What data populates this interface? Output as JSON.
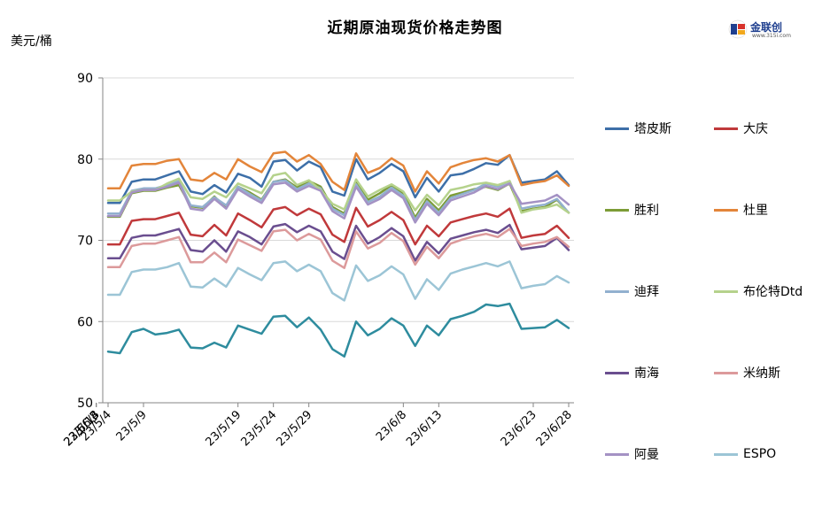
{
  "page": {
    "title": "近期原油现货价格走势图",
    "unit_label": "美元/桶"
  },
  "logo": {
    "brand": "金联创",
    "url": "www.315i.com"
  },
  "chart_data": {
    "type": "line",
    "title": "近期原油现货价格走势图",
    "ylabel": "美元/桶",
    "ylim": [
      50,
      90
    ],
    "yticks": [
      50,
      60,
      70,
      80,
      90
    ],
    "grid": "horizontal",
    "legend_position": "right",
    "x": [
      "23/5/4",
      "23/5/5",
      "23/5/8",
      "23/5/9",
      "23/5/10",
      "23/5/11",
      "23/5/12",
      "23/5/15",
      "23/5/16",
      "23/5/17",
      "23/5/18",
      "23/5/19",
      "23/5/22",
      "23/5/23",
      "23/5/24",
      "23/5/25",
      "23/5/26",
      "23/5/29",
      "23/5/30",
      "23/5/31",
      "23/6/1",
      "23/6/2",
      "23/6/5",
      "23/6/6",
      "23/6/7",
      "23/6/8",
      "23/6/9",
      "23/6/12",
      "23/6/13",
      "23/6/14",
      "23/6/15",
      "23/6/16",
      "23/6/19",
      "23/6/20",
      "23/6/21",
      "23/6/22",
      "23/6/23",
      "23/6/26",
      "23/6/27",
      "23/6/28"
    ],
    "xtick_labels": [
      "23/5/4",
      "23/5/9",
      "23/5/14",
      "23/5/19",
      "23/5/24",
      "23/5/29",
      "23/6/3",
      "23/6/8",
      "23/6/13",
      "23/6/18",
      "23/6/23",
      "23/6/28"
    ],
    "series": [
      {
        "name": "塔皮斯",
        "color": "#3d6fa8",
        "values": [
          74.6,
          74.6,
          77.2,
          77.5,
          77.5,
          78.0,
          78.5,
          76.0,
          75.7,
          76.8,
          75.9,
          78.2,
          77.7,
          76.6,
          79.7,
          79.9,
          78.6,
          79.7,
          79.0,
          76.0,
          75.5,
          80.0,
          77.5,
          78.3,
          79.4,
          78.5,
          75.3,
          77.7,
          76.0,
          78.0,
          78.2,
          78.8,
          79.5,
          79.3,
          80.5,
          77.1,
          77.3,
          77.5,
          78.5,
          76.8
        ]
      },
      {
        "name": "大庆",
        "color": "#c0393b",
        "values": [
          69.5,
          69.5,
          72.4,
          72.6,
          72.6,
          73.0,
          73.4,
          70.7,
          70.5,
          71.9,
          70.6,
          73.3,
          72.5,
          71.6,
          73.8,
          74.1,
          73.1,
          73.9,
          73.2,
          70.7,
          69.8,
          74.0,
          71.7,
          72.5,
          73.5,
          72.5,
          69.5,
          71.8,
          70.5,
          72.2,
          72.6,
          73.0,
          73.3,
          72.9,
          73.9,
          70.3,
          70.6,
          70.8,
          71.8,
          70.3
        ]
      },
      {
        "name": "胜利",
        "color": "#7c9c36",
        "values": [
          72.9,
          72.9,
          75.8,
          76.1,
          76.1,
          76.5,
          76.8,
          74.2,
          74.0,
          75.4,
          74.0,
          76.6,
          75.9,
          75.0,
          77.2,
          77.5,
          76.5,
          77.3,
          76.6,
          74.1,
          73.3,
          77.2,
          75.0,
          75.8,
          76.8,
          75.8,
          72.8,
          75.1,
          73.7,
          75.5,
          75.9,
          76.3,
          76.6,
          76.2,
          77.0,
          73.6,
          73.9,
          74.1,
          75.0,
          73.4
        ]
      },
      {
        "name": "杜里",
        "color": "#e3853a",
        "values": [
          76.4,
          76.4,
          79.2,
          79.4,
          79.4,
          79.8,
          80.0,
          77.5,
          77.3,
          78.3,
          77.5,
          80.0,
          79.1,
          78.4,
          80.7,
          80.9,
          79.7,
          80.5,
          79.4,
          77.2,
          76.2,
          80.7,
          78.3,
          78.9,
          80.1,
          79.2,
          76.0,
          78.5,
          77.0,
          79.0,
          79.5,
          79.9,
          80.1,
          79.7,
          80.5,
          76.8,
          77.1,
          77.3,
          78.0,
          76.7
        ]
      },
      {
        "name": "迪拜",
        "color": "#92b0cf",
        "values": [
          73.3,
          73.3,
          76.1,
          76.4,
          76.4,
          76.8,
          77.3,
          74.3,
          74.1,
          75.3,
          74.3,
          76.6,
          75.7,
          74.9,
          77.2,
          77.4,
          76.3,
          77.0,
          76.4,
          73.9,
          73.1,
          76.9,
          74.7,
          75.4,
          76.5,
          75.5,
          72.5,
          74.8,
          73.4,
          75.2,
          75.7,
          76.2,
          77.0,
          76.6,
          77.3,
          73.9,
          74.2,
          74.4,
          75.1,
          73.4
        ]
      },
      {
        "name": "布伦特Dtd",
        "color": "#b5d28c",
        "values": [
          74.9,
          74.9,
          76.0,
          76.2,
          76.2,
          77.0,
          77.6,
          75.3,
          75.1,
          76.0,
          75.3,
          77.0,
          76.4,
          75.8,
          78.0,
          78.3,
          76.8,
          77.4,
          76.2,
          74.5,
          73.8,
          77.5,
          75.4,
          76.2,
          76.9,
          76.0,
          73.7,
          75.6,
          74.3,
          76.2,
          76.5,
          76.9,
          77.1,
          76.8,
          77.3,
          73.4,
          73.8,
          74.0,
          74.4,
          73.4
        ]
      },
      {
        "name": "南海",
        "color": "#6a4e8f",
        "values": [
          67.8,
          67.8,
          70.3,
          70.6,
          70.6,
          71.0,
          71.4,
          68.8,
          68.6,
          70.0,
          68.6,
          71.1,
          70.4,
          69.5,
          71.7,
          72.0,
          71.0,
          71.8,
          71.1,
          68.6,
          67.7,
          71.8,
          69.6,
          70.4,
          71.5,
          70.5,
          67.5,
          69.8,
          68.4,
          70.2,
          70.6,
          71.0,
          71.3,
          70.9,
          71.9,
          68.9,
          69.1,
          69.3,
          70.3,
          68.8
        ]
      },
      {
        "name": "米纳斯",
        "color": "#dc9a9b",
        "values": [
          66.7,
          66.7,
          69.3,
          69.6,
          69.6,
          70.0,
          70.4,
          67.3,
          67.3,
          68.5,
          67.3,
          70.1,
          69.4,
          68.7,
          71.1,
          71.3,
          70.0,
          70.8,
          70.1,
          67.5,
          66.6,
          71.1,
          69.0,
          69.7,
          70.9,
          69.9,
          67.0,
          69.2,
          67.8,
          69.6,
          70.1,
          70.5,
          70.8,
          70.4,
          71.4,
          69.3,
          69.6,
          69.8,
          70.4,
          69.2
        ]
      },
      {
        "name": "阿曼",
        "color": "#a492c4",
        "values": [
          73.0,
          73.0,
          75.9,
          76.2,
          76.2,
          76.6,
          77.1,
          73.9,
          73.7,
          75.1,
          73.9,
          76.3,
          75.4,
          74.6,
          76.9,
          77.1,
          76.0,
          76.7,
          76.1,
          73.6,
          72.7,
          76.6,
          74.4,
          75.1,
          76.2,
          75.2,
          72.2,
          74.5,
          73.1,
          74.9,
          75.4,
          75.9,
          76.7,
          76.3,
          77.0,
          74.5,
          74.7,
          74.9,
          75.6,
          74.4
        ]
      },
      {
        "name": "ESPO",
        "color": "#9cc5d6",
        "values": [
          63.3,
          63.3,
          66.1,
          66.4,
          66.4,
          66.7,
          67.2,
          64.3,
          64.2,
          65.3,
          64.3,
          66.6,
          65.8,
          65.1,
          67.2,
          67.4,
          66.2,
          67.0,
          66.2,
          63.5,
          62.6,
          66.9,
          65.0,
          65.7,
          66.8,
          65.8,
          62.8,
          65.2,
          63.9,
          65.9,
          66.4,
          66.8,
          67.2,
          66.8,
          67.4,
          64.1,
          64.4,
          64.6,
          65.6,
          64.8
        ]
      },
      {
        "name": "",
        "color": "#2e8c9e",
        "values": [
          56.3,
          56.1,
          58.7,
          59.1,
          58.4,
          58.6,
          59.0,
          56.8,
          56.7,
          57.4,
          56.8,
          59.5,
          59.0,
          58.5,
          60.6,
          60.7,
          59.3,
          60.5,
          59.0,
          56.6,
          55.7,
          60.0,
          58.3,
          59.1,
          60.4,
          59.5,
          57.0,
          59.5,
          58.3,
          60.3,
          60.7,
          61.2,
          62.1,
          61.9,
          62.2,
          59.1,
          59.2,
          59.3,
          60.2,
          59.2
        ]
      }
    ]
  }
}
